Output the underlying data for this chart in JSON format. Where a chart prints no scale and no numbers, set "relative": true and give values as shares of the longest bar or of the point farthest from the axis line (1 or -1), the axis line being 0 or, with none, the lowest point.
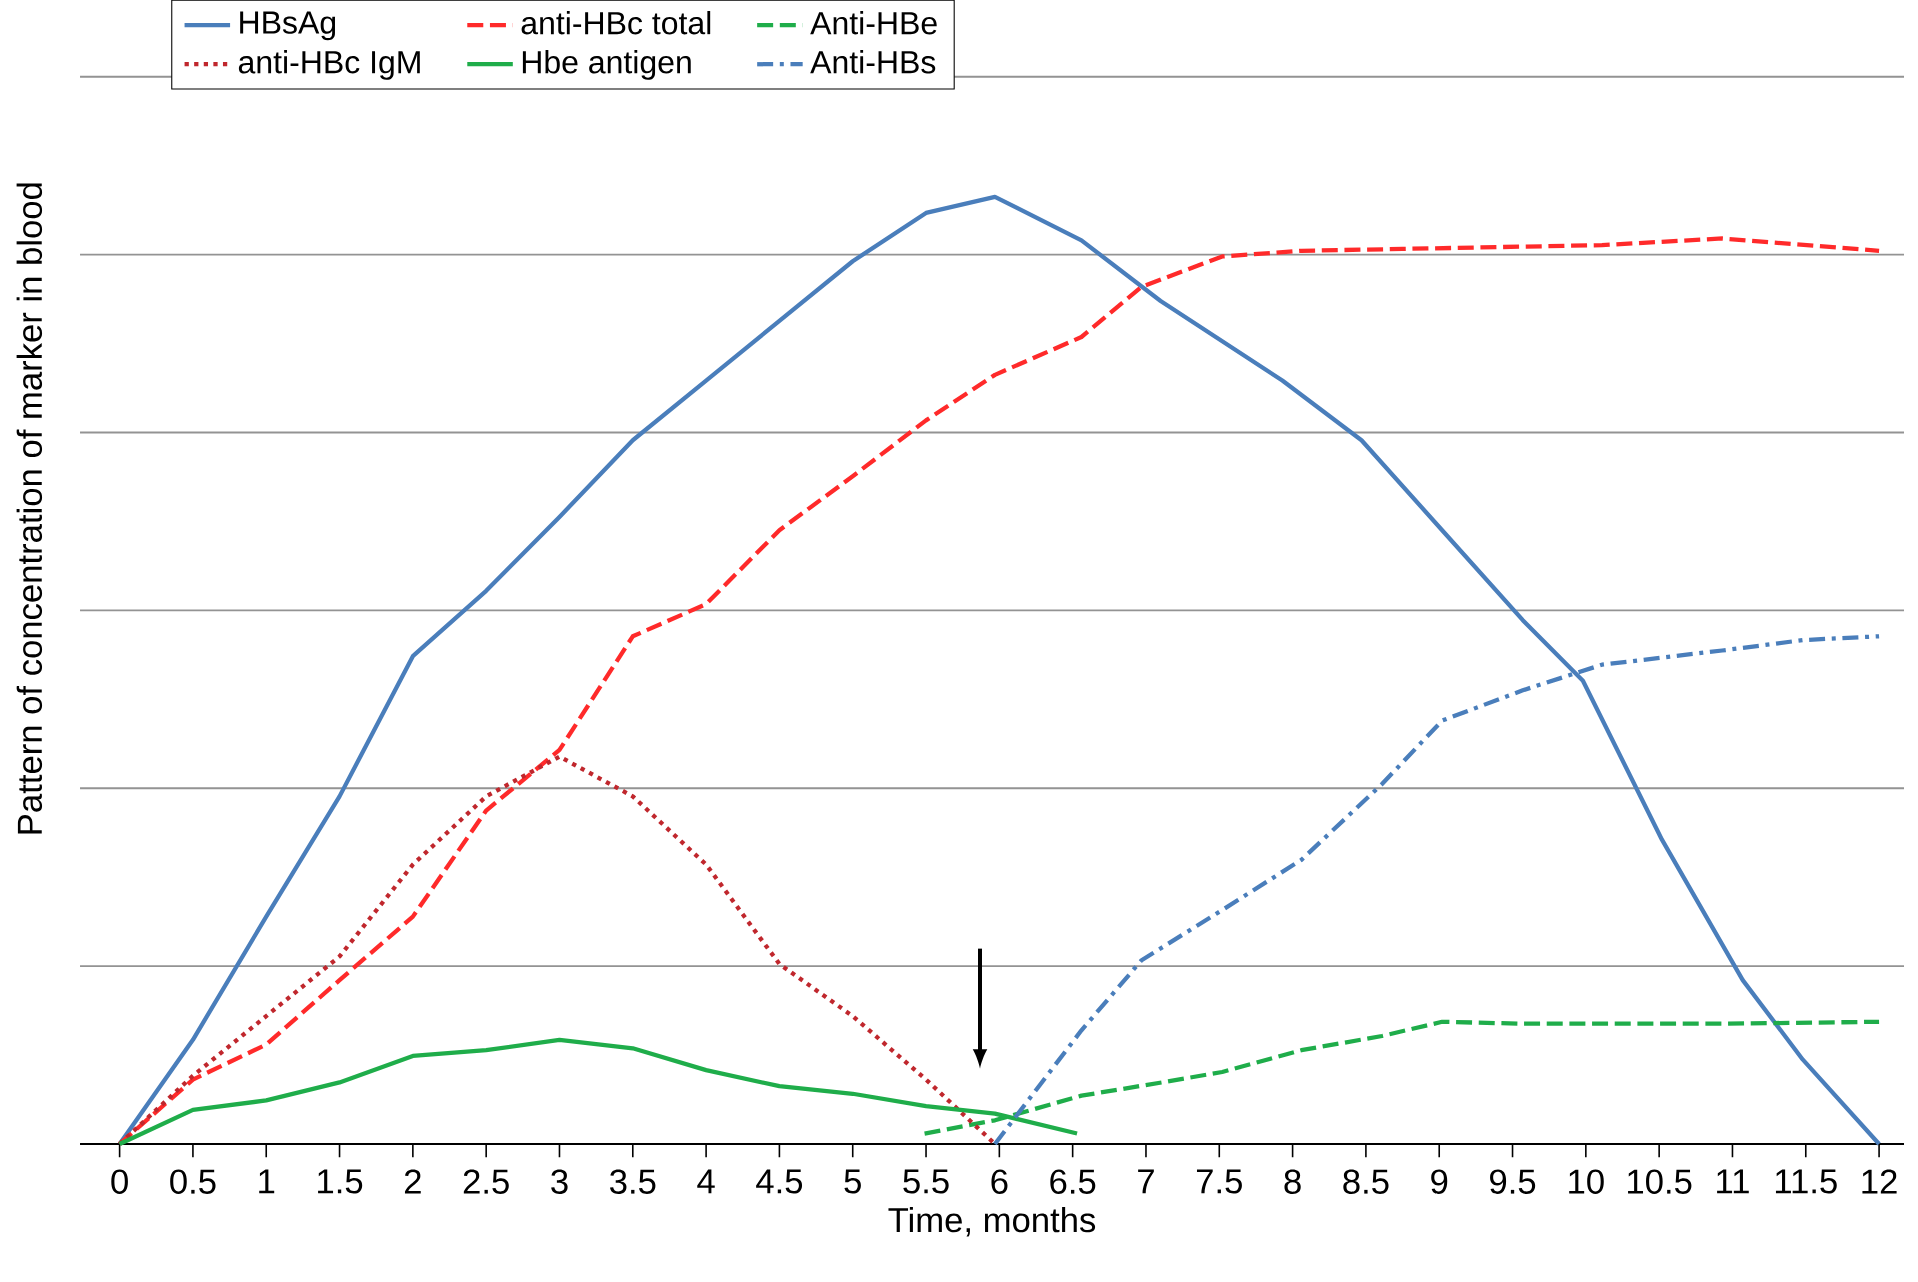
{
  "chart_data": {
    "type": "line",
    "relative": true,
    "xlabel": "Time, months",
    "ylabel": "Pattern of concentration of marker in blood",
    "xlim": [
      -0.27,
      12.17
    ],
    "xticks": [
      0,
      0.5,
      1,
      1.5,
      2,
      2.5,
      3,
      3.5,
      4,
      4.5,
      5,
      5.5,
      6,
      6.5,
      7,
      7.5,
      8,
      8.5,
      9,
      9.5,
      10,
      10.5,
      11,
      11.5,
      12
    ],
    "grid": "y",
    "legend": "top left",
    "marker": "none",
    "series": [
      {
        "name": "HBsAg",
        "color": "#4a7ebb",
        "line_style": "solid",
        "x": [
          0,
          0.5,
          1,
          1.5,
          2,
          2.5,
          3,
          3.5,
          4,
          4.5,
          5,
          5.5,
          5.97,
          6.56,
          7.1,
          7.93,
          8.47,
          9.02,
          9.57,
          9.98,
          10.52,
          11.07,
          11.48,
          12
        ],
        "values": [
          0,
          0.11,
          0.24,
          0.367,
          0.515,
          0.584,
          0.662,
          0.743,
          0.806,
          0.869,
          0.932,
          0.983,
          1,
          0.954,
          0.89,
          0.806,
          0.743,
          0.648,
          0.553,
          0.489,
          0.321,
          0.173,
          0.089,
          0
        ]
      },
      {
        "name": "anti-HBc total",
        "color": "#ff2a2a",
        "line_style": "dashed",
        "x": [
          0,
          0.5,
          1,
          1.5,
          2,
          2.5,
          3,
          3.5,
          4,
          4.5,
          5,
          5.5,
          5.97,
          6.56,
          6.97,
          7.52,
          8.06,
          8.75,
          10.11,
          10.93,
          12
        ],
        "values": [
          0,
          0.068,
          0.105,
          0.173,
          0.24,
          0.352,
          0.416,
          0.536,
          0.57,
          0.648,
          0.705,
          0.764,
          0.812,
          0.852,
          0.905,
          0.937,
          0.943,
          0.945,
          0.949,
          0.956,
          0.943
        ]
      },
      {
        "name": "Anti-HBe",
        "color": "#1fad4a",
        "line_style": "dashed",
        "x": [
          5.49,
          5.97,
          6.56,
          7.11,
          7.52,
          8.06,
          8.61,
          9.02,
          9.57,
          10.11,
          10.93,
          12
        ],
        "values": [
          0.011,
          0.025,
          0.051,
          0.065,
          0.076,
          0.099,
          0.114,
          0.129,
          0.127,
          0.127,
          0.127,
          0.129
        ]
      },
      {
        "name": "anti-HBc IgM",
        "color": "#c0272d",
        "line_style": "dotted",
        "x": [
          0,
          0.5,
          1,
          1.5,
          2,
          2.5,
          3,
          3.5,
          4,
          4.5,
          5,
          5.5,
          5.97
        ],
        "values": [
          0,
          0.072,
          0.135,
          0.198,
          0.295,
          0.367,
          0.409,
          0.367,
          0.295,
          0.19,
          0.135,
          0.068,
          0
        ]
      },
      {
        "name": "Hbe antigen",
        "color": "#1fad4a",
        "line_style": "solid",
        "x": [
          0,
          0.5,
          1,
          1.5,
          2,
          2.5,
          3,
          3.5,
          4,
          4.5,
          5,
          5.5,
          5.97,
          6.53
        ],
        "values": [
          0,
          0.036,
          0.046,
          0.065,
          0.093,
          0.099,
          0.11,
          0.101,
          0.078,
          0.061,
          0.053,
          0.04,
          0.032,
          0.011
        ]
      },
      {
        "name": "Anti-HBs",
        "color": "#4a7ebb",
        "line_style": "dashdot",
        "x": [
          5.97,
          6.56,
          6.97,
          7.52,
          8.06,
          8.61,
          9.02,
          9.57,
          10.11,
          10.93,
          11.48,
          12
        ],
        "values": [
          0,
          0.12,
          0.194,
          0.247,
          0.3,
          0.38,
          0.447,
          0.479,
          0.506,
          0.521,
          0.532,
          0.536
        ]
      }
    ]
  }
}
